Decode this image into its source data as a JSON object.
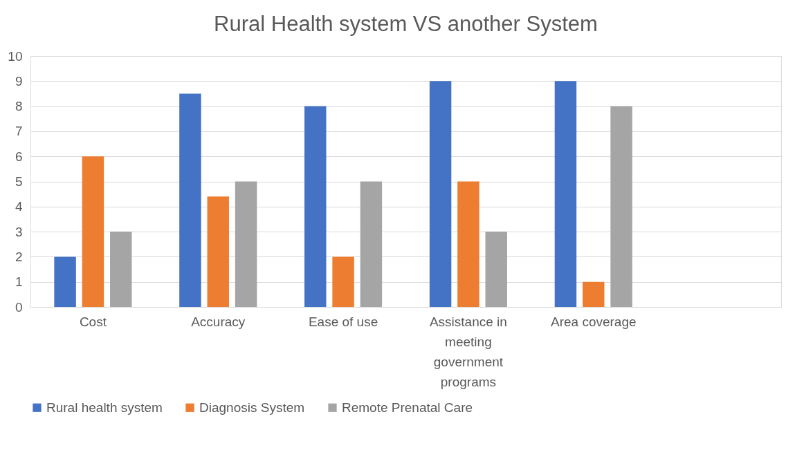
{
  "chart_data": {
    "type": "bar",
    "title": "Rural Health system VS another System",
    "categories": [
      "Cost",
      "Accuracy",
      "Ease of use",
      "Assistance in meeting government programs",
      "Area coverage",
      null
    ],
    "series": [
      {
        "name": "Rural health system",
        "color": "#4472c4",
        "values": [
          2,
          8.5,
          8,
          9,
          9,
          null
        ]
      },
      {
        "name": "Diagnosis System",
        "color": "#ed7d31",
        "values": [
          6,
          4.4,
          2,
          5,
          1,
          null
        ]
      },
      {
        "name": "Remote Prenatal Care",
        "color": "#a5a5a5",
        "values": [
          3,
          5,
          5,
          3,
          8,
          null
        ]
      }
    ],
    "ylim": [
      0,
      10
    ],
    "yticks": [
      0,
      1,
      2,
      3,
      4,
      5,
      6,
      7,
      8,
      9,
      10
    ],
    "grid": "y",
    "legend": "bottom"
  }
}
